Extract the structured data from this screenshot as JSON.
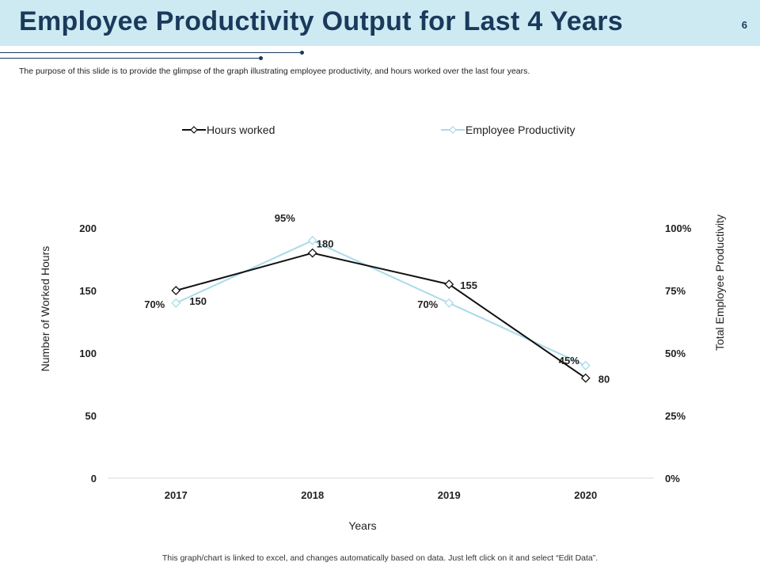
{
  "header": {
    "title": "Employee Productivity Output for Last 4 Years",
    "page_number": "6"
  },
  "subtitle": "The purpose of this slide is to provide the glimpse of the graph illustrating employee productivity, and hours worked over the last four years.",
  "footnote": "This graph/chart is linked to excel, and changes automatically based on data. Just left click on it and select “Edit Data”.",
  "colors": {
    "title": "#1a3a5c",
    "header_bg": "#cdeaf3",
    "hours_series": "#111111",
    "productivity_series": "#a8dce8",
    "gridline": "#d9d9d9"
  },
  "chart_data": {
    "type": "line",
    "categories": [
      "2017",
      "2018",
      "2019",
      "2020"
    ],
    "xlabel": "Years",
    "ylabel": "Number of Worked Hours",
    "y2label": "Total Employee Productivity",
    "ylim": [
      0,
      200
    ],
    "y_ticks": [
      "0",
      "50",
      "100",
      "150",
      "200"
    ],
    "y2lim": [
      0,
      100
    ],
    "y2_ticks": [
      "0%",
      "25%",
      "50%",
      "75%",
      "100%"
    ],
    "legend_position": "top",
    "series": [
      {
        "name": "Hours worked",
        "axis": "left",
        "values": [
          150,
          180,
          155,
          80
        ],
        "labels": [
          "150",
          "180",
          "155",
          "80"
        ],
        "color": "#111111"
      },
      {
        "name": "Employee Productivity",
        "axis": "right",
        "values": [
          70,
          95,
          70,
          45
        ],
        "labels": [
          "70%",
          "95%",
          "70%",
          "45%"
        ],
        "color": "#a8dce8"
      }
    ]
  }
}
